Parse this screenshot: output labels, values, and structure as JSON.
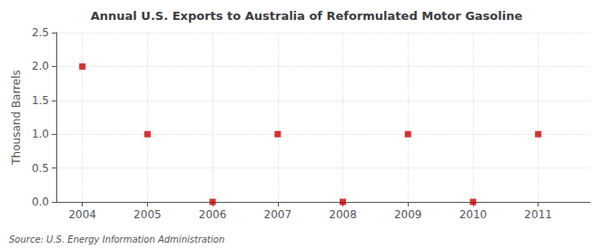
{
  "chart_data": {
    "type": "scatter",
    "title": "Annual U.S. Exports to Australia of Reformulated Motor Gasoline",
    "ylabel": "Thousand Barrels",
    "source": "Source: U.S. Energy Information Administration",
    "x": [
      2004,
      2005,
      2006,
      2007,
      2008,
      2009,
      2010,
      2011
    ],
    "values": [
      2.0,
      1.0,
      0.0,
      1.0,
      0.0,
      1.0,
      0.0,
      1.0
    ],
    "xlim": [
      2003.6,
      2011.8
    ],
    "xticks": [
      2004,
      2005,
      2006,
      2007,
      2008,
      2009,
      2010,
      2011
    ],
    "ylim": [
      0.0,
      2.5
    ],
    "yticks": [
      {
        "value": 0,
        "label": "0.0"
      },
      0.5,
      {
        "value": 1,
        "label": "1.0"
      },
      1.5,
      {
        "value": 2,
        "label": "2.0"
      },
      2.5
    ],
    "color": "#cc0000",
    "marker": "square",
    "grid": true
  }
}
